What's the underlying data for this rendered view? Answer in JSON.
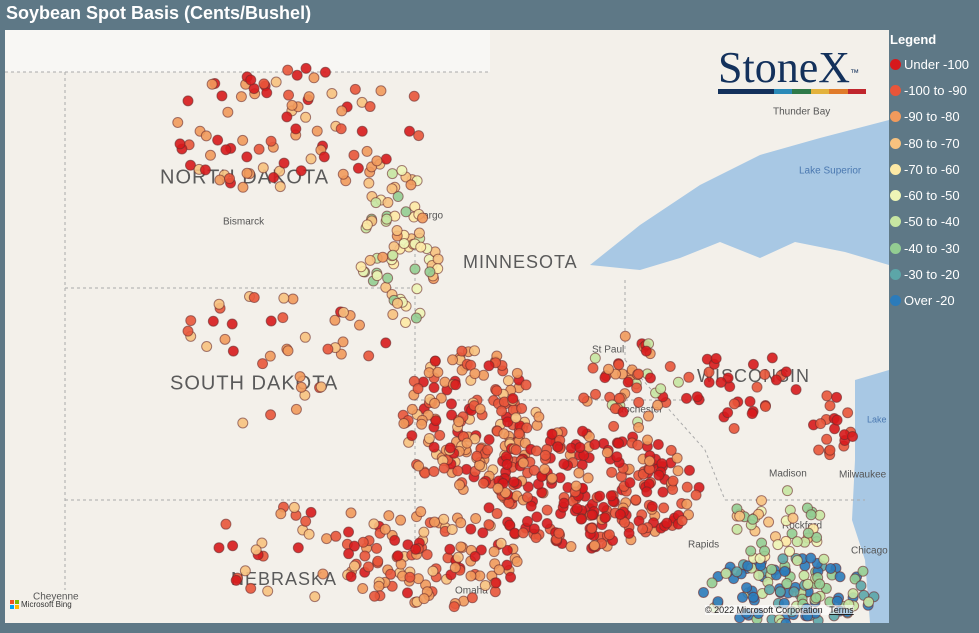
{
  "header": {
    "title": "Soybean Spot Basis (Cents/Bushel)"
  },
  "legend": {
    "title": "Legend",
    "items": [
      {
        "label": "Under -100",
        "color": "#d7191c"
      },
      {
        "label": "-100 to -90",
        "color": "#e8553a"
      },
      {
        "label": "-90 to -80",
        "color": "#f19a5c"
      },
      {
        "label": "-80 to -70",
        "color": "#f7c27f"
      },
      {
        "label": "-70 to -60",
        "color": "#fde9a5"
      },
      {
        "label": "-60 to -50",
        "color": "#eef5b6"
      },
      {
        "label": "-50 to -40",
        "color": "#c7e6a2"
      },
      {
        "label": "-40 to -30",
        "color": "#93cd92"
      },
      {
        "label": "-30 to -20",
        "color": "#5ca6a8"
      },
      {
        "label": "Over -20",
        "color": "#2b7bba"
      }
    ]
  },
  "logo": {
    "name": "StoneX",
    "mark": "™"
  },
  "map": {
    "labels": [
      {
        "text": "NORTH DAKOTA"
      },
      {
        "text": "SOUTH DAKOTA"
      },
      {
        "text": "MINNESOTA"
      },
      {
        "text": "WISCONSIN"
      },
      {
        "text": "NEBRASKA"
      },
      {
        "text": "Bismarck"
      },
      {
        "text": "Fargo"
      },
      {
        "text": "St Paul"
      },
      {
        "text": "Rochester"
      },
      {
        "text": "Madison"
      },
      {
        "text": "Milwaukee"
      },
      {
        "text": "Rockford"
      },
      {
        "text": "Chicago"
      },
      {
        "text": "Rapids"
      },
      {
        "text": "Omaha"
      },
      {
        "text": "Cheyenne"
      },
      {
        "text": "Thunder Bay"
      },
      {
        "text": "Lake Superior"
      },
      {
        "text": "Lake Michig"
      }
    ],
    "attribution": {
      "provider": "Microsoft Bing",
      "copyright": "© 2022 Microsoft Corporation",
      "terms": "Terms"
    }
  }
}
